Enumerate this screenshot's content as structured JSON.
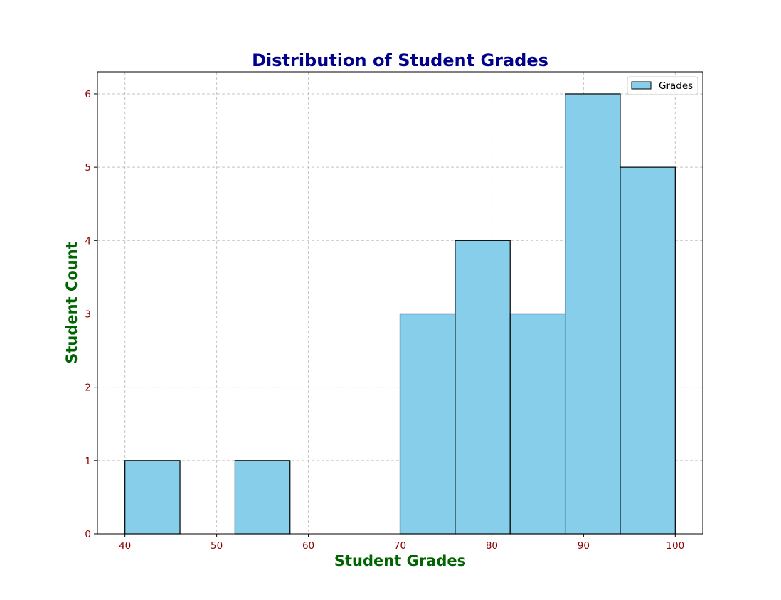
{
  "chart_data": {
    "type": "bar",
    "title": "Distribution of Student Grades",
    "xlabel": "Student Grades",
    "ylabel": "Student Count",
    "bins": [
      {
        "start": 40,
        "end": 46,
        "count": 1
      },
      {
        "start": 46,
        "end": 52,
        "count": 0
      },
      {
        "start": 52,
        "end": 58,
        "count": 1
      },
      {
        "start": 58,
        "end": 64,
        "count": 0
      },
      {
        "start": 64,
        "end": 70,
        "count": 0
      },
      {
        "start": 70,
        "end": 76,
        "count": 3
      },
      {
        "start": 76,
        "end": 82,
        "count": 4
      },
      {
        "start": 82,
        "end": 88,
        "count": 3
      },
      {
        "start": 88,
        "end": 94,
        "count": 6
      },
      {
        "start": 94,
        "end": 100,
        "count": 5
      }
    ],
    "series": [
      {
        "name": "Grades",
        "color": "#87CEEB",
        "edgecolor": "#000000"
      }
    ],
    "xlim": [
      37,
      103
    ],
    "ylim": [
      0,
      6.3
    ],
    "xticks": [
      40,
      50,
      60,
      70,
      80,
      90,
      100
    ],
    "yticks": [
      0,
      1,
      2,
      3,
      4,
      5,
      6
    ],
    "grid": true,
    "legend_position": "top-right",
    "colors": {
      "title": "#00008B",
      "axis_label": "#006400",
      "tick_label": "#8B0000"
    }
  }
}
